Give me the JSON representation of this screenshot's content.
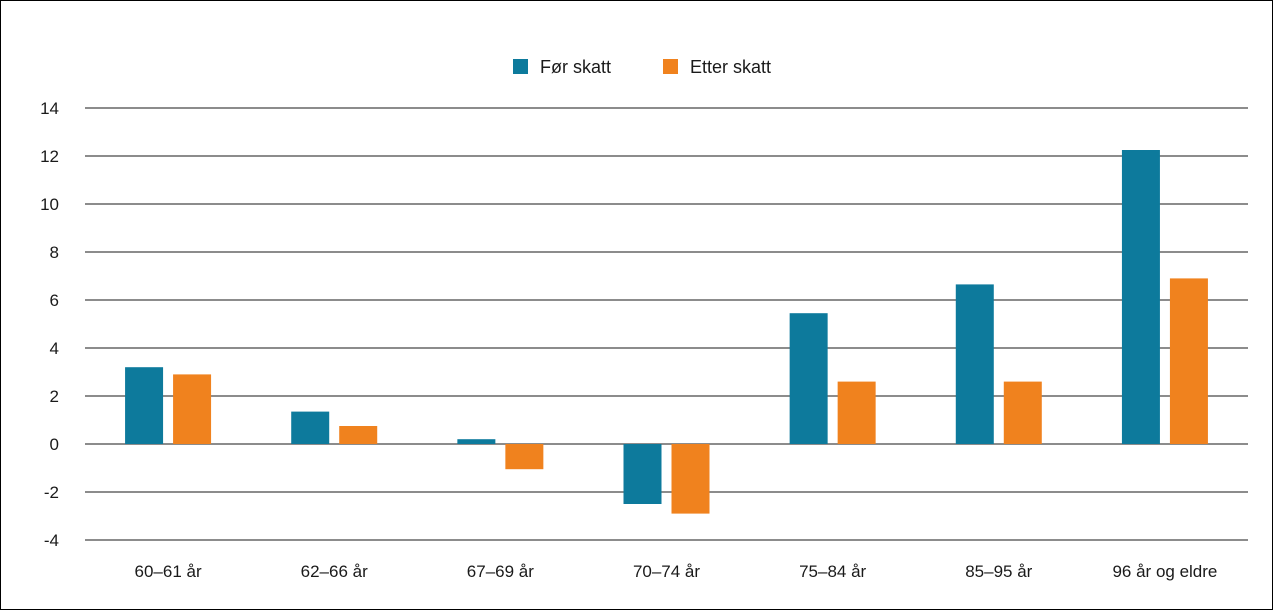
{
  "chart_data": {
    "type": "bar",
    "title": "",
    "xlabel": "",
    "ylabel": "",
    "categories": [
      "60–61 år",
      "62–66 år",
      "67–69 år",
      "70–74 år",
      "75–84 år",
      "85–95 år",
      "96 år og eldre"
    ],
    "series": [
      {
        "name": "Før skatt",
        "color": "#0d7a9c",
        "values": [
          3.2,
          1.35,
          0.2,
          -2.5,
          5.45,
          6.65,
          12.25
        ]
      },
      {
        "name": "Etter skatt",
        "color": "#f0821e",
        "values": [
          2.9,
          0.75,
          -1.05,
          -2.9,
          2.6,
          2.6,
          6.9
        ]
      }
    ],
    "ylim": [
      -4,
      14
    ],
    "yticks": [
      14,
      12,
      10,
      8,
      6,
      4,
      2,
      0,
      -2,
      -4
    ],
    "ytick_labels": [
      "14",
      "12",
      "10",
      "8",
      "6",
      "4",
      "2",
      "0",
      "-2",
      "-4"
    ],
    "grid": true,
    "legend_position": "top-center"
  }
}
